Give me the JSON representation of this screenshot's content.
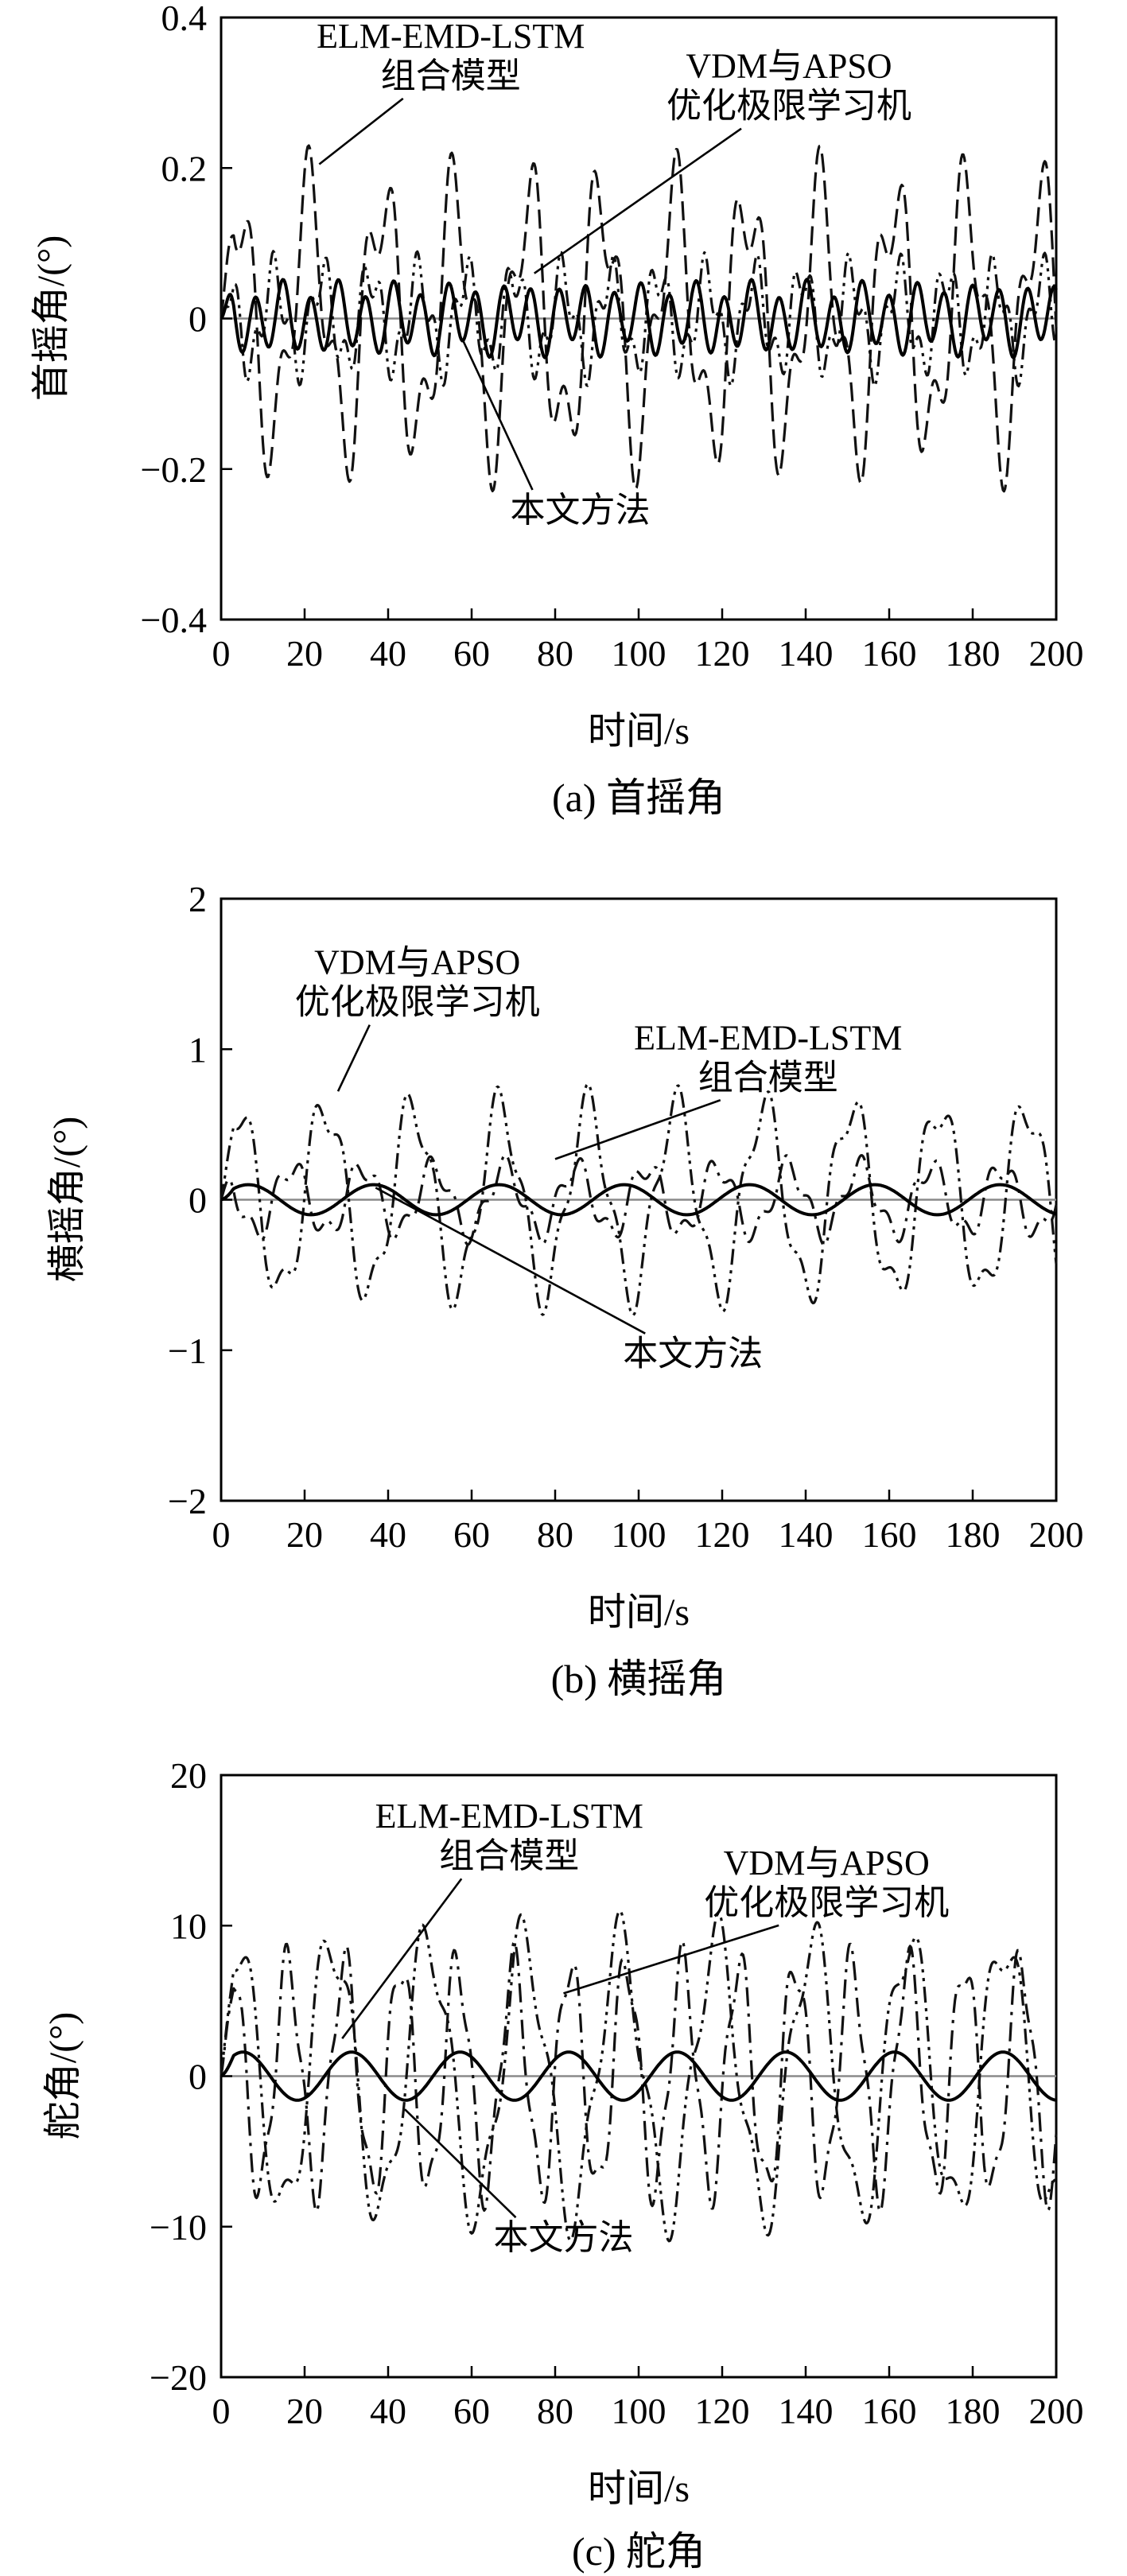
{
  "figure": {
    "captions": [
      "(a) 首摇角",
      "(b) 横摇角",
      "(c) 舵角"
    ]
  },
  "chart_data": [
    {
      "type": "line",
      "id": "yaw",
      "caption": "(a) 首摇角",
      "xlabel": "时间/s",
      "ylabel": "首摇角/(°)",
      "xlim": [
        0,
        200
      ],
      "ylim": [
        -0.4,
        0.4
      ],
      "xticks": [
        0,
        20,
        40,
        60,
        80,
        100,
        120,
        140,
        160,
        180,
        200
      ],
      "xtick_labels": [
        "0",
        "20",
        "40",
        "60",
        "80",
        "100",
        "120",
        "140",
        "160",
        "180",
        "200"
      ],
      "yticks": [
        -0.4,
        -0.2,
        0,
        0.2,
        0.4
      ],
      "ytick_labels": [
        "−0.4",
        "−0.2",
        "0",
        "0.2",
        "0.4"
      ],
      "zero_line": true,
      "series": [
        {
          "name": "ELM-EMD-LSTM组合模型",
          "style": "dashed",
          "color": "#111111",
          "stroke_width": 3.2,
          "components": [
            {
              "a": 0.16,
              "p": 17.5,
              "ph": 0.3
            },
            {
              "a": 0.07,
              "p": 6.8,
              "ph": 1.1
            }
          ]
        },
        {
          "name": "VDM与APSO优化极限学习机",
          "style": "dashdotdot",
          "color": "#111111",
          "stroke_width": 3.2,
          "components": [
            {
              "a": 0.06,
              "p": 11.5,
              "ph": 0.9
            },
            {
              "a": 0.03,
              "p": 4.3,
              "ph": 2.2
            }
          ]
        },
        {
          "name": "本文方法",
          "style": "solid",
          "color": "#000000",
          "stroke_width": 4,
          "components": [
            {
              "a": 0.04,
              "p": 6.6,
              "ph": 0.0
            },
            {
              "a": 0.012,
              "p": 14.0,
              "ph": 1.3
            }
          ]
        }
      ],
      "annotations": [
        {
          "lines": [
            "ELM-EMD-LSTM",
            "组合模型"
          ],
          "text_at": [
            55,
            0.36
          ],
          "point_to": [
            23.5,
            0.205
          ]
        },
        {
          "lines": [
            "VDM与APSO",
            "优化极限学习机"
          ],
          "text_at": [
            136,
            0.32
          ],
          "point_to": [
            75,
            0.06
          ]
        },
        {
          "lines": [
            "本文方法"
          ],
          "text_at": [
            86,
            -0.27
          ],
          "point_to": [
            58,
            -0.03
          ]
        }
      ]
    },
    {
      "type": "line",
      "id": "roll",
      "caption": "(b) 横摇角",
      "xlabel": "时间/s",
      "ylabel": "横摇角/(°)",
      "xlim": [
        0,
        200
      ],
      "ylim": [
        -2,
        2
      ],
      "xticks": [
        0,
        20,
        40,
        60,
        80,
        100,
        120,
        140,
        160,
        180,
        200
      ],
      "xtick_labels": [
        "0",
        "20",
        "40",
        "60",
        "80",
        "100",
        "120",
        "140",
        "160",
        "180",
        "200"
      ],
      "yticks": [
        -2,
        -1,
        0,
        1,
        2
      ],
      "ytick_labels": [
        "−2",
        "−1",
        "0",
        "1",
        "2"
      ],
      "zero_line": true,
      "series": [
        {
          "name": "VDM与APSO优化极限学习机",
          "style": "dashdotdot",
          "color": "#111111",
          "stroke_width": 3.2,
          "components": [
            {
              "a": 0.62,
              "p": 21.0,
              "ph": 0.4
            },
            {
              "a": 0.15,
              "p": 7.3,
              "ph": 1.4
            }
          ]
        },
        {
          "name": "ELM-EMD-LSTM组合模型",
          "style": "dashdot",
          "color": "#111111",
          "stroke_width": 3.2,
          "components": [
            {
              "a": 0.22,
              "p": 17.0,
              "ph": 1.6
            },
            {
              "a": 0.08,
              "p": 6.1,
              "ph": 0.5
            }
          ]
        },
        {
          "name": "本文方法",
          "style": "solid",
          "color": "#000000",
          "stroke_width": 4,
          "components": [
            {
              "a": 0.1,
              "p": 30.0,
              "ph": 0.2
            }
          ]
        }
      ],
      "annotations": [
        {
          "lines": [
            "VDM与APSO",
            "优化极限学习机"
          ],
          "text_at": [
            47,
            1.5
          ],
          "point_to": [
            28,
            0.72
          ]
        },
        {
          "lines": [
            "ELM-EMD-LSTM",
            "组合模型"
          ],
          "text_at": [
            131,
            1.0
          ],
          "point_to": [
            80,
            0.27
          ]
        },
        {
          "lines": [
            "本文方法"
          ],
          "text_at": [
            113,
            -1.1
          ],
          "point_to": [
            37,
            0.08
          ]
        }
      ]
    },
    {
      "type": "line",
      "id": "rudder",
      "caption": "(c) 舵角",
      "xlabel": "时间/s",
      "ylabel": "舵角/(°)",
      "xlim": [
        0,
        200
      ],
      "ylim": [
        -20,
        20
      ],
      "xticks": [
        0,
        20,
        40,
        60,
        80,
        100,
        120,
        140,
        160,
        180,
        200
      ],
      "xtick_labels": [
        "0",
        "20",
        "40",
        "60",
        "80",
        "100",
        "120",
        "140",
        "160",
        "180",
        "200"
      ],
      "yticks": [
        -20,
        -10,
        0,
        10,
        20
      ],
      "ytick_labels": [
        "−20",
        "−10",
        "0",
        "10",
        "20"
      ],
      "zero_line": true,
      "series": [
        {
          "name": "ELM-EMD-LSTM组合模型",
          "style": "dashdot",
          "color": "#111111",
          "stroke_width": 3.2,
          "components": [
            {
              "a": 7.5,
              "p": 13.5,
              "ph": 0.4
            },
            {
              "a": 1.5,
              "p": 5.0,
              "ph": 1.1
            }
          ]
        },
        {
          "name": "VDM与APSO优化极限学习机",
          "style": "dashdotdot",
          "color": "#111111",
          "stroke_width": 3.2,
          "components": [
            {
              "a": 9.0,
              "p": 23.0,
              "ph": 0.6
            },
            {
              "a": 2.0,
              "p": 8.0,
              "ph": 2.0
            }
          ]
        },
        {
          "name": "本文方法",
          "style": "solid",
          "color": "#000000",
          "stroke_width": 4,
          "components": [
            {
              "a": 1.6,
              "p": 26.0,
              "ph": 0.3
            }
          ]
        }
      ],
      "annotations": [
        {
          "lines": [
            "ELM-EMD-LSTM",
            "组合模型"
          ],
          "text_at": [
            69,
            16.5
          ],
          "point_to": [
            29,
            2.5
          ]
        },
        {
          "lines": [
            "VDM与APSO",
            "优化极限学习机"
          ],
          "text_at": [
            145,
            13.4
          ],
          "point_to": [
            82,
            5.5
          ]
        },
        {
          "lines": [
            "本文方法"
          ],
          "text_at": [
            82,
            -11.5
          ],
          "point_to": [
            44,
            -2.2
          ]
        }
      ]
    }
  ]
}
